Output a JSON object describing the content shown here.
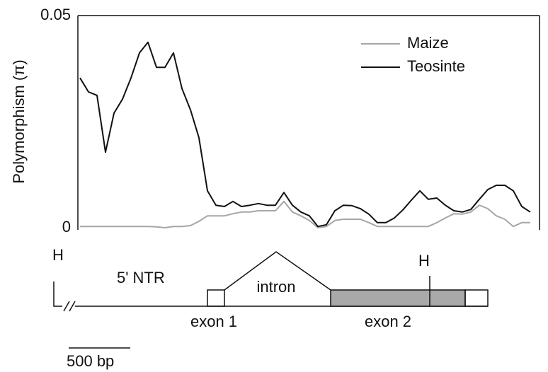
{
  "chart_data": {
    "type": "line",
    "ylabel": "Polymorphism (π)",
    "ylim": [
      0,
      0.05
    ],
    "yticks": [
      0,
      0.05
    ],
    "legend": "upper right",
    "series": [
      {
        "name": "Maize",
        "color": "#a6a6a6",
        "values": [
          0.0003,
          0.0003,
          0.0003,
          0.0003,
          0.0003,
          0.0003,
          0.0003,
          0.0003,
          0.0003,
          0.0002,
          0,
          0.0003,
          0.0003,
          0.0005,
          0.0015,
          0.0028,
          0.0028,
          0.0028,
          0.0033,
          0.0037,
          0.0037,
          0.004,
          0.004,
          0.004,
          0.0062,
          0.0037,
          0.0028,
          0.0017,
          0,
          0.0003,
          0.0017,
          0.002,
          0.002,
          0.002,
          0.0012,
          0.0003,
          0.0003,
          0.0003,
          0.0003,
          0.0003,
          0.0003,
          0.0003,
          0.0012,
          0.0023,
          0.0033,
          0.0032,
          0.0037,
          0.0053,
          0.0045,
          0.0028,
          0.002,
          0.0003,
          0.0012,
          0.0012
        ]
      },
      {
        "name": "Teosinte",
        "color": "#111111",
        "values": [
          0.0353,
          0.032,
          0.0312,
          0.0178,
          0.027,
          0.0303,
          0.0353,
          0.0412,
          0.0437,
          0.0378,
          0.0378,
          0.0412,
          0.0328,
          0.0278,
          0.0212,
          0.0087,
          0.0053,
          0.005,
          0.0062,
          0.005,
          0.0053,
          0.0057,
          0.0053,
          0.0053,
          0.0083,
          0.0053,
          0.0037,
          0.0028,
          0.0003,
          0.0007,
          0.004,
          0.0053,
          0.0052,
          0.0045,
          0.0032,
          0.0012,
          0.0012,
          0.0023,
          0.0042,
          0.0065,
          0.0087,
          0.0067,
          0.007,
          0.0053,
          0.004,
          0.0037,
          0.0043,
          0.0067,
          0.009,
          0.01,
          0.01,
          0.0087,
          0.005,
          0.0037
        ]
      }
    ],
    "annotations": {
      "h_left": "H",
      "ntr": "5' NTR",
      "intron": "intron",
      "h_right": "H",
      "exon1": "exon 1",
      "exon2": "exon 2",
      "scale": "500 bp"
    }
  }
}
